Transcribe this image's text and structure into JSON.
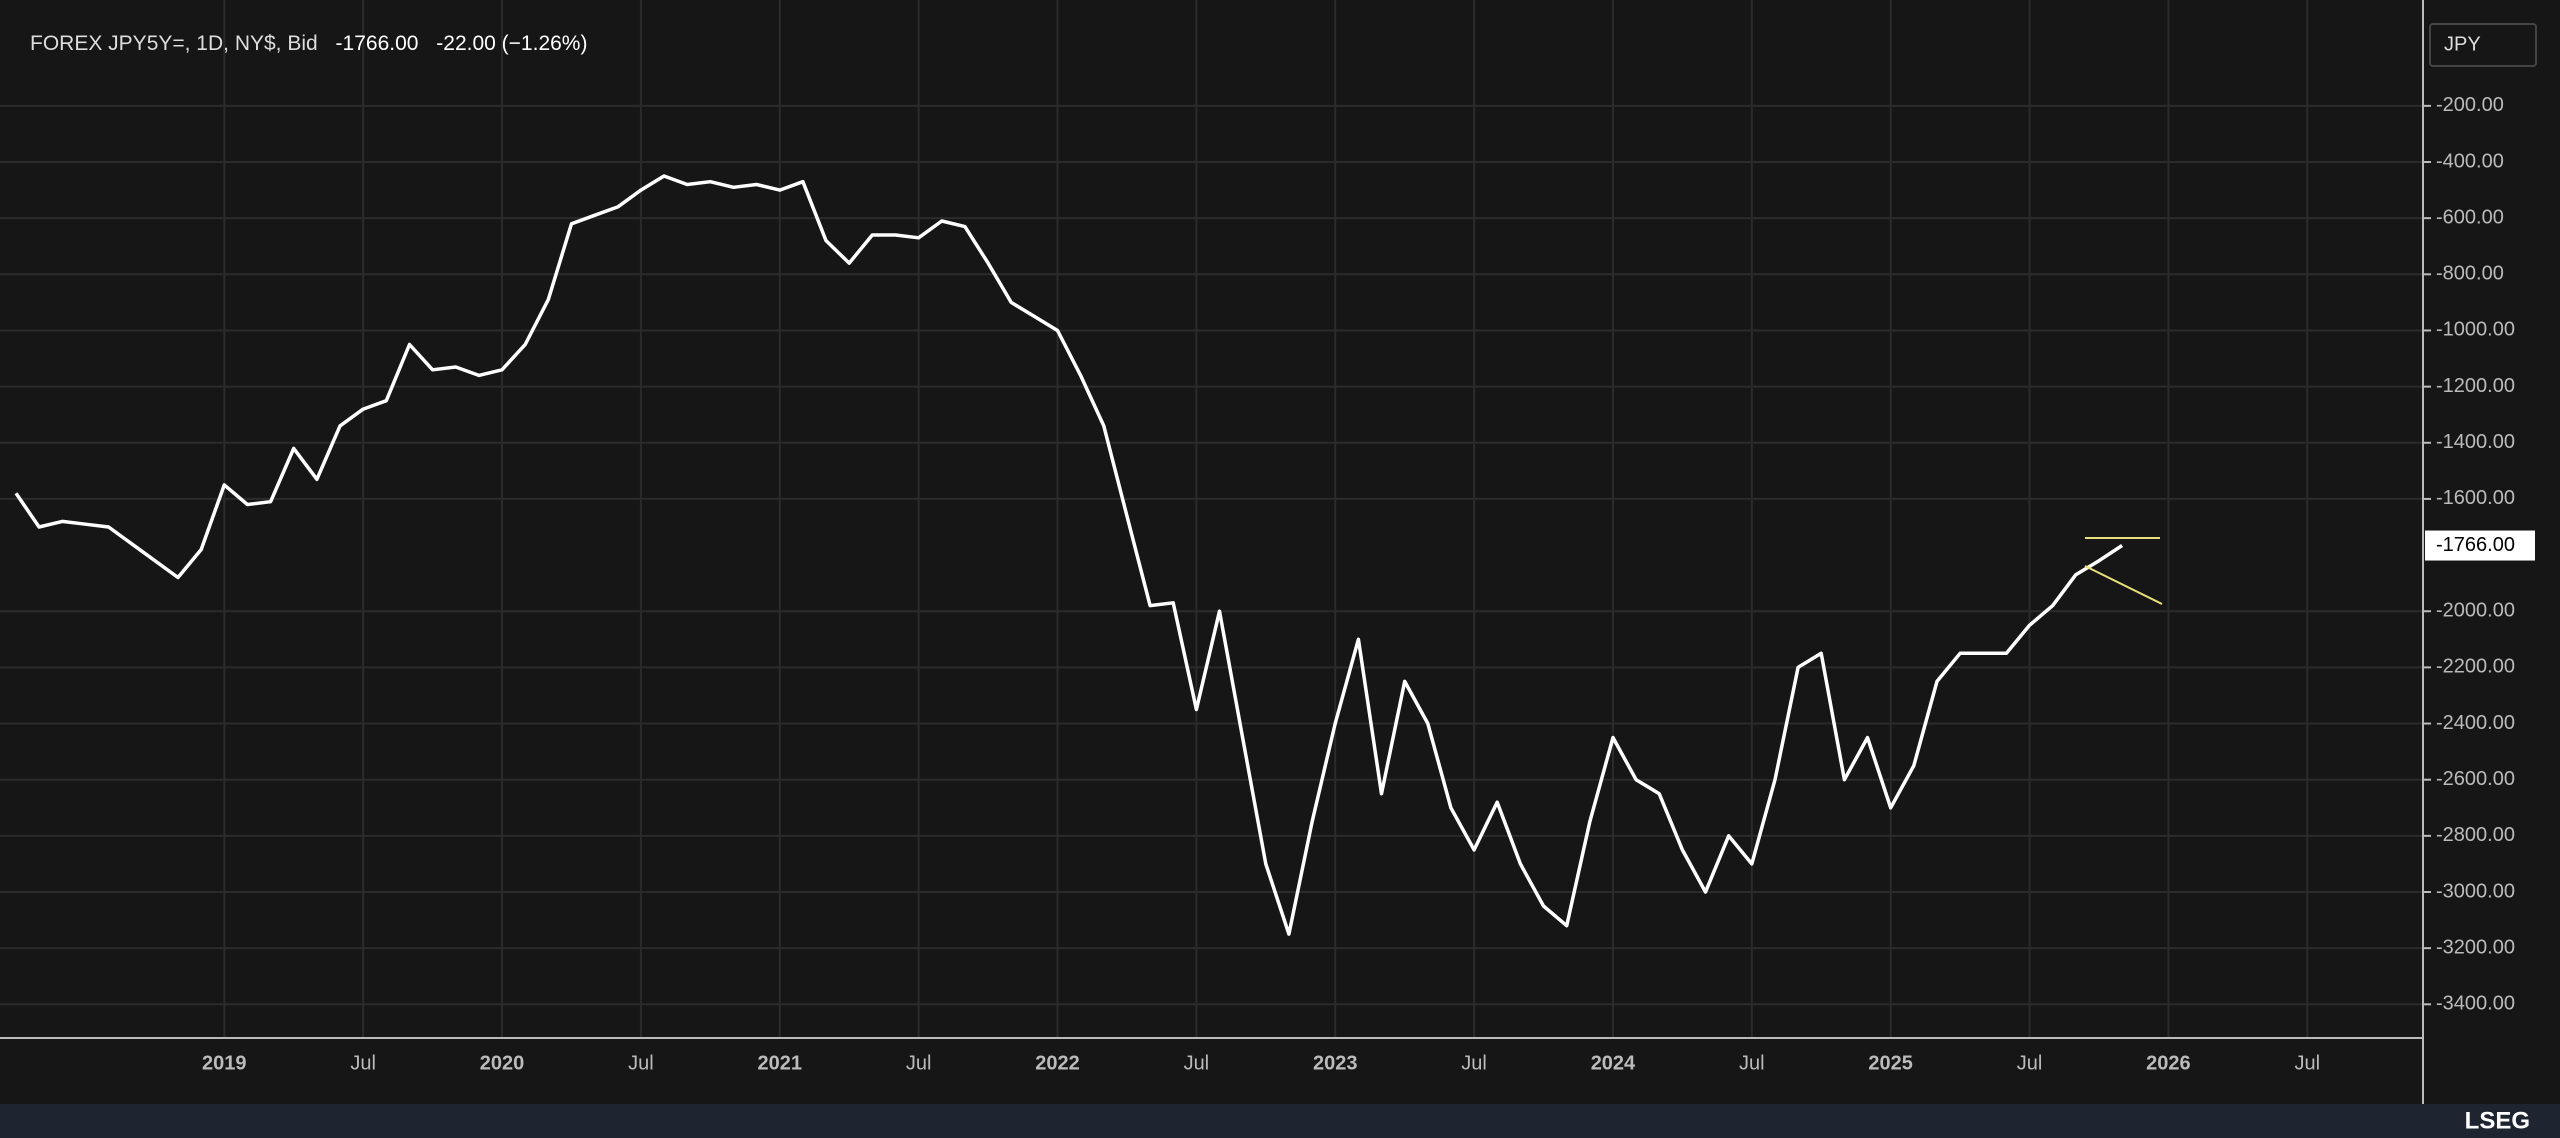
{
  "chart_data": {
    "type": "line",
    "header": {
      "instrument": "FOREX JPY5Y=, 1D, NY$, Bid",
      "price": "-1766.00",
      "change": "-22.00 (−1.26%)"
    },
    "unit": "JPY",
    "last_label": "-1766.00",
    "brand": "LSEG",
    "x": [
      "2018-04",
      "2018-05",
      "2018-06",
      "2018-07",
      "2018-08",
      "2018-09",
      "2018-10",
      "2018-11",
      "2018-12",
      "2019-01",
      "2019-02",
      "2019-03",
      "2019-04",
      "2019-05",
      "2019-06",
      "2019-07",
      "2019-08",
      "2019-09",
      "2019-10",
      "2019-11",
      "2019-12",
      "2020-01",
      "2020-02",
      "2020-03",
      "2020-04",
      "2020-05",
      "2020-06",
      "2020-07",
      "2020-08",
      "2020-09",
      "2020-10",
      "2020-11",
      "2020-12",
      "2021-01",
      "2021-02",
      "2021-03",
      "2021-04",
      "2021-05",
      "2021-06",
      "2021-07",
      "2021-08",
      "2021-09",
      "2021-10",
      "2021-11",
      "2021-12",
      "2022-01",
      "2022-02",
      "2022-03",
      "2022-04",
      "2022-05",
      "2022-06",
      "2022-07",
      "2022-08",
      "2022-09",
      "2022-10",
      "2022-11",
      "2022-12",
      "2023-01",
      "2023-02",
      "2023-03",
      "2023-04",
      "2023-05",
      "2023-06",
      "2023-07",
      "2023-08",
      "2023-09",
      "2023-10",
      "2023-11",
      "2023-12",
      "2024-01",
      "2024-02",
      "2024-03",
      "2024-04",
      "2024-05",
      "2024-06",
      "2024-07",
      "2024-08",
      "2024-09",
      "2024-10",
      "2024-11",
      "2024-12",
      "2025-01",
      "2025-02",
      "2025-03",
      "2025-04",
      "2025-05",
      "2025-06",
      "2025-07",
      "2025-08",
      "2025-09",
      "2025-10",
      "2025-11"
    ],
    "series": [
      {
        "name": "JPY5Y=",
        "color": "#ffffff",
        "values": [
          -1580,
          -1700,
          -1680,
          -1690,
          -1700,
          -1760,
          -1820,
          -1880,
          -1780,
          -1550,
          -1620,
          -1610,
          -1420,
          -1530,
          -1340,
          -1280,
          -1250,
          -1050,
          -1140,
          -1130,
          -1160,
          -1140,
          -1050,
          -890,
          -620,
          -590,
          -560,
          -500,
          -450,
          -480,
          -470,
          -490,
          -480,
          -500,
          -470,
          -680,
          -760,
          -660,
          -660,
          -670,
          -610,
          -630,
          -760,
          -900,
          -950,
          -1000,
          -1160,
          -1340,
          -1660,
          -1980,
          -1970,
          -2350,
          -2000,
          -2450,
          -2900,
          -3150,
          -2750,
          -2400,
          -2100,
          -2650,
          -2250,
          -2400,
          -2700,
          -2850,
          -2680,
          -2900,
          -3050,
          -3120,
          -2750,
          -2450,
          -2600,
          -2650,
          -2850,
          -3000,
          -2800,
          -2900,
          -2600,
          -2200,
          -2150,
          -2600,
          -2450,
          -2700,
          -2550,
          -2250,
          -2150,
          -2150,
          -2150,
          -2050,
          -1980,
          -1870,
          -1820,
          -1766
        ]
      }
    ],
    "xlim": [
      "2018-04",
      "2026-12"
    ],
    "xticks": [
      {
        "value": "2019-01",
        "label": "2019"
      },
      {
        "value": "2019-07",
        "label": "Jul"
      },
      {
        "value": "2020-01",
        "label": "2020"
      },
      {
        "value": "2020-07",
        "label": "Jul"
      },
      {
        "value": "2021-01",
        "label": "2021"
      },
      {
        "value": "2021-07",
        "label": "Jul"
      },
      {
        "value": "2022-01",
        "label": "2022"
      },
      {
        "value": "2022-07",
        "label": "Jul"
      },
      {
        "value": "2023-01",
        "label": "2023"
      },
      {
        "value": "2023-07",
        "label": "Jul"
      },
      {
        "value": "2024-01",
        "label": "2024"
      },
      {
        "value": "2024-07",
        "label": "Jul"
      },
      {
        "value": "2025-01",
        "label": "2025"
      },
      {
        "value": "2025-07",
        "label": "Jul"
      },
      {
        "value": "2026-01",
        "label": "2026"
      },
      {
        "value": "2026-07",
        "label": "Jul"
      }
    ],
    "ylim": [
      -3520,
      120
    ],
    "yticks": [
      {
        "value": -200,
        "label": "-200.00"
      },
      {
        "value": -400,
        "label": "-400.00"
      },
      {
        "value": -600,
        "label": "-600.00"
      },
      {
        "value": -800,
        "label": "-800.00"
      },
      {
        "value": -1000,
        "label": "-1000.00"
      },
      {
        "value": -1200,
        "label": "-1200.00"
      },
      {
        "value": -1400,
        "label": "-1400.00"
      },
      {
        "value": -1600,
        "label": "-1600.00"
      },
      {
        "value": -2000,
        "label": "-2000.00"
      },
      {
        "value": -2200,
        "label": "-2200.00"
      },
      {
        "value": -2400,
        "label": "-2400.00"
      },
      {
        "value": -2600,
        "label": "-2600.00"
      },
      {
        "value": -2800,
        "label": "-2800.00"
      },
      {
        "value": -3000,
        "label": "-3000.00"
      },
      {
        "value": -3200,
        "label": "-3200.00"
      },
      {
        "value": -3400,
        "label": "-3400.00"
      }
    ],
    "grid": true
  }
}
